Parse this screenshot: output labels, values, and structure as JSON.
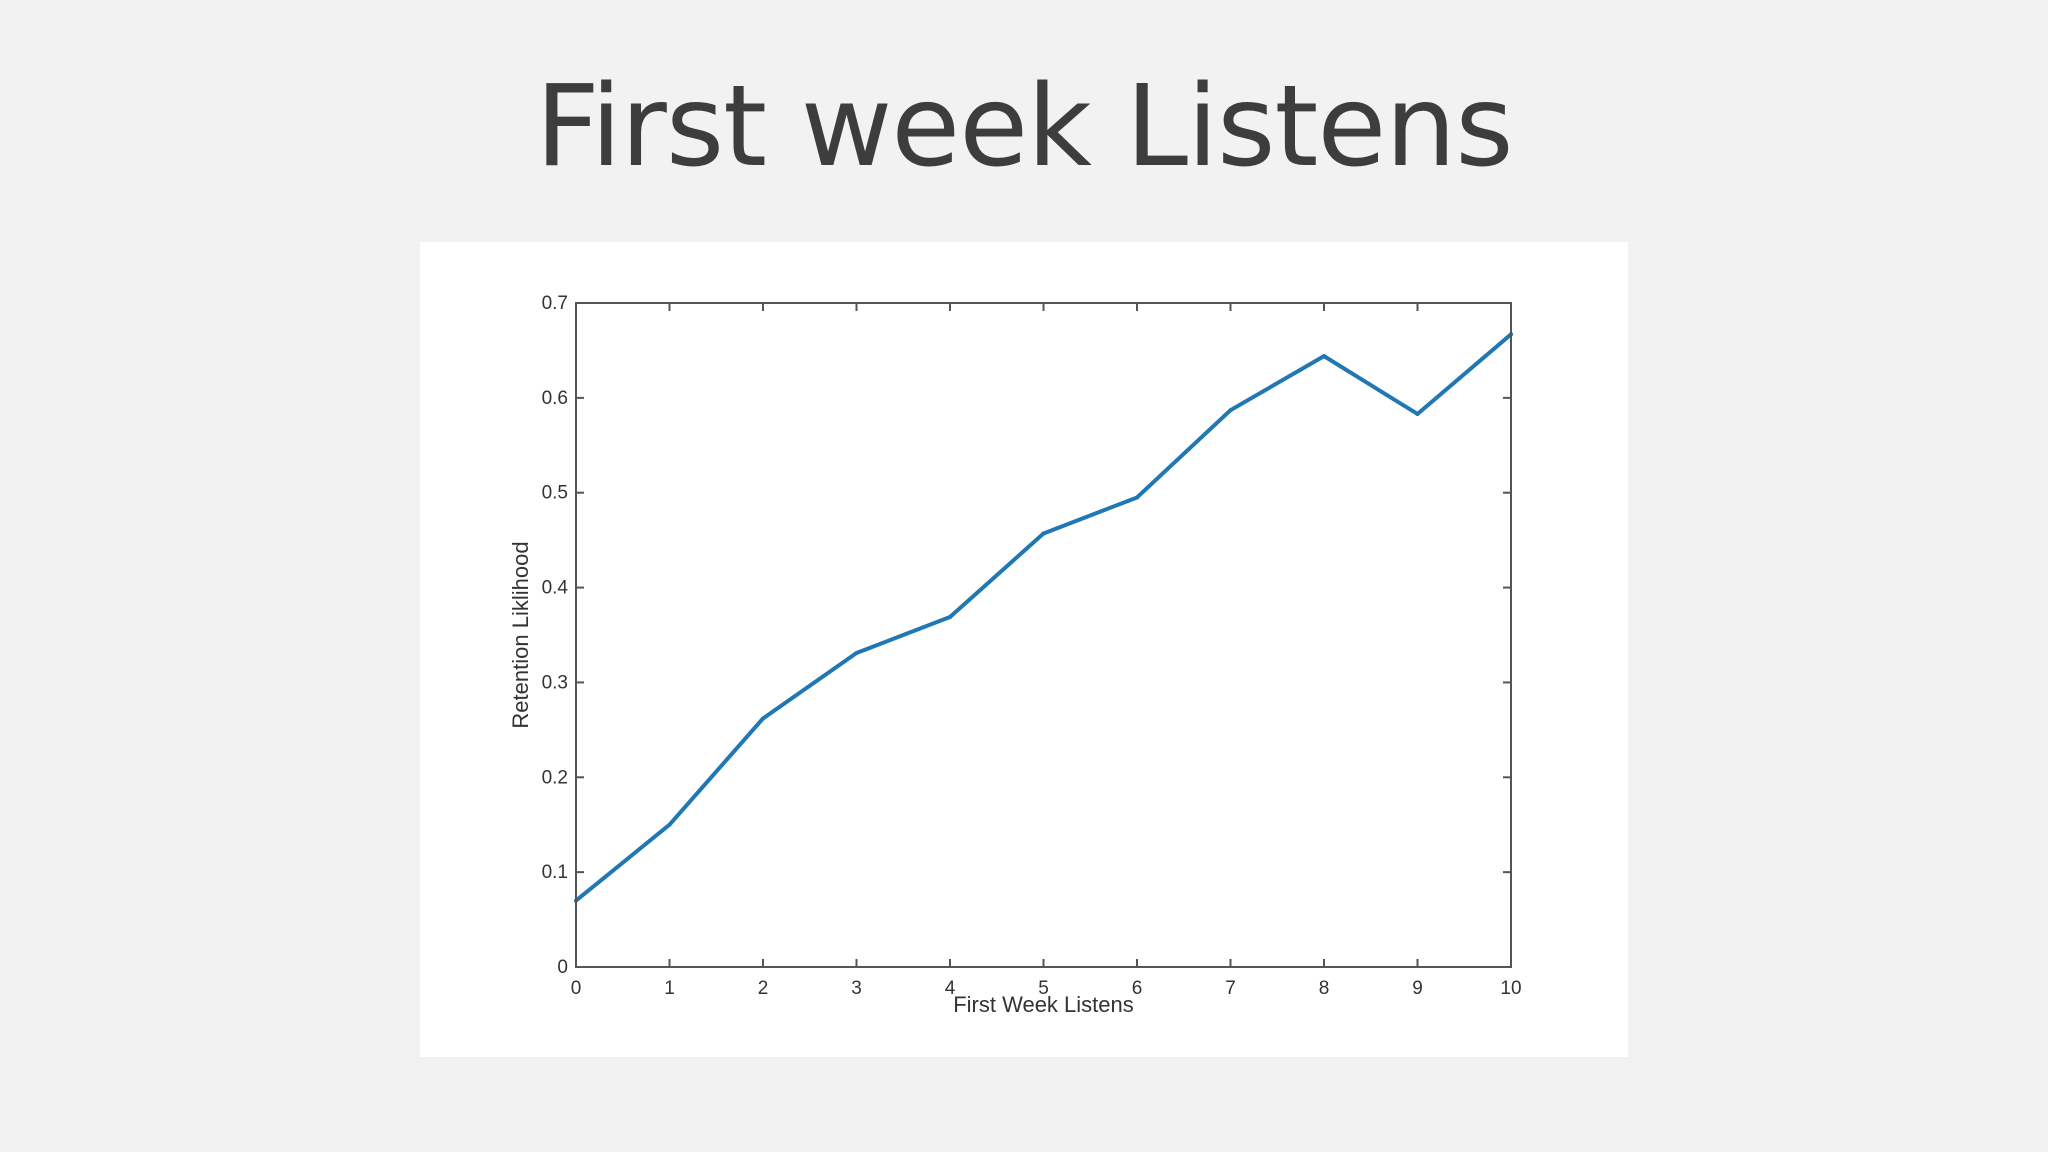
{
  "slide": {
    "title": "First week Listens"
  },
  "chart_data": {
    "type": "line",
    "title": "",
    "xlabel": "First Week Listens",
    "ylabel": "Retention Liklihood",
    "xlim": [
      0,
      10
    ],
    "ylim": [
      0,
      0.7
    ],
    "x_ticks": [
      "0",
      "1",
      "2",
      "3",
      "4",
      "5",
      "6",
      "7",
      "8",
      "9",
      "10"
    ],
    "y_ticks": [
      "0",
      "0.1",
      "0.2",
      "0.3",
      "0.4",
      "0.5",
      "0.6",
      "0.7"
    ],
    "grid": false,
    "legend": "none",
    "line_color": "#1f77b4",
    "series": [
      {
        "x": [
          0,
          1,
          2,
          3,
          4,
          5,
          6,
          7,
          8,
          9,
          10
        ],
        "values": [
          0.07,
          0.15,
          0.262,
          0.331,
          0.369,
          0.457,
          0.495,
          0.587,
          0.644,
          0.583,
          0.667
        ]
      }
    ]
  }
}
